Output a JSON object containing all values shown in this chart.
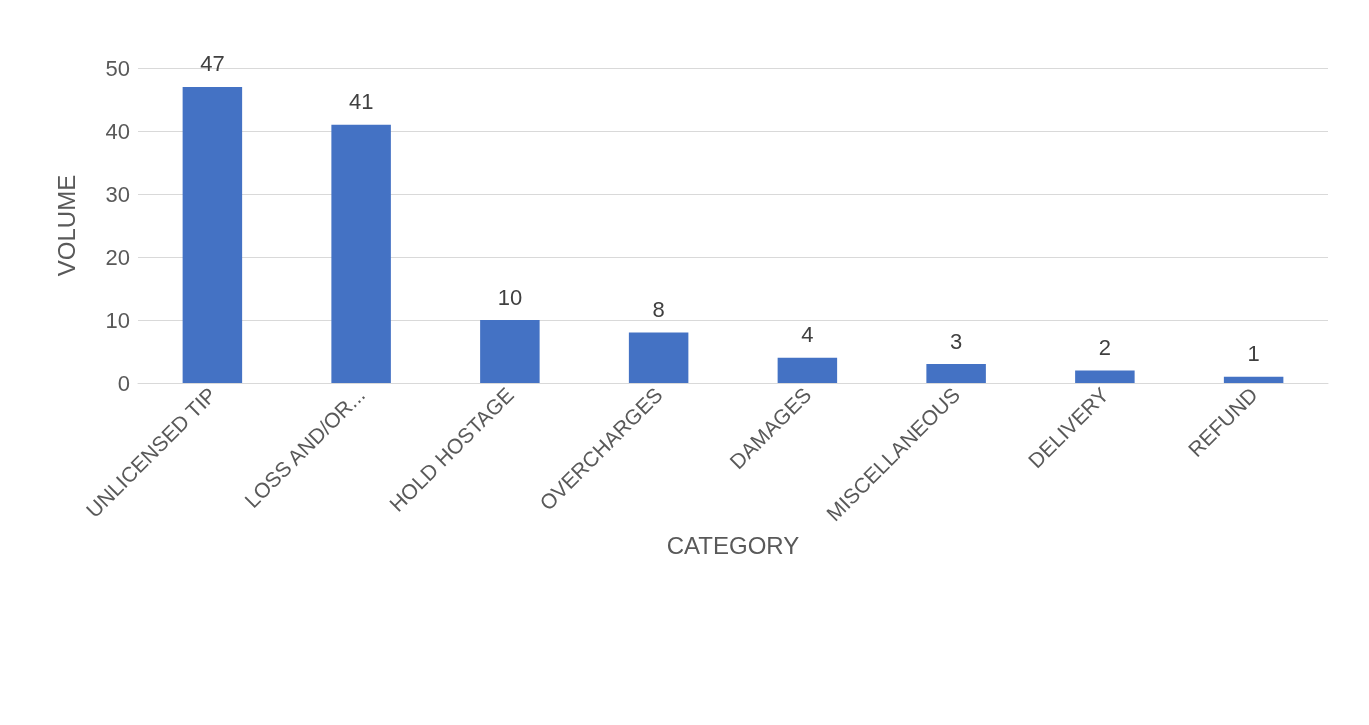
{
  "chart_data": {
    "type": "bar",
    "xlabel": "CATEGORY",
    "ylabel": "VOLUME",
    "categories": [
      "UNLICENSED TIP",
      "LOSS AND/OR...",
      "HOLD HOSTAGE",
      "OVERCHARGES",
      "DAMAGES",
      "MISCELLANEOUS",
      "DELIVERY",
      "REFUND"
    ],
    "values": [
      47,
      41,
      10,
      8,
      4,
      3,
      2,
      1
    ],
    "color": "#4472c4",
    "ylim": [
      0,
      50
    ],
    "yticks": [
      0,
      10,
      20,
      30,
      40,
      50
    ],
    "grid": "y",
    "data_labels": true
  }
}
